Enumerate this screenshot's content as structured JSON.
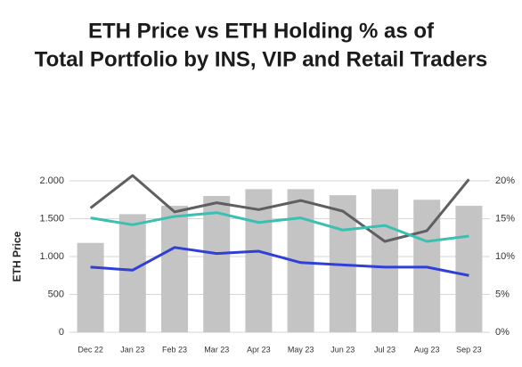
{
  "chart_data": {
    "type": "bar_line",
    "title": [
      "ETH Price vs ETH Holding % as of",
      "Total Portfolio by INS, VIP and Retail Traders"
    ],
    "ylabel": "ETH Price",
    "categories": [
      "Dec 22",
      "Jan 23",
      "Feb 23",
      "Mar 23",
      "Apr 23",
      "May 23",
      "Jun 23",
      "Jul 23",
      "Aug 23",
      "Sep 23"
    ],
    "ylim": [
      0,
      2000
    ],
    "yticks": [
      0,
      500,
      {
        "value": 1000,
        "label": "1.000"
      },
      {
        "value": 1500,
        "label": "1.500"
      },
      {
        "value": 2000,
        "label": "2.000"
      }
    ],
    "y2lim": [
      0,
      20
    ],
    "y2ticks": [
      {
        "value": 0,
        "label": "0%"
      },
      {
        "value": 5,
        "label": "5%"
      },
      {
        "value": 10,
        "label": "10%"
      },
      {
        "value": 15,
        "label": "15%"
      },
      {
        "value": 20,
        "label": "20%"
      }
    ],
    "grid": true,
    "series": [
      {
        "kind": "bar",
        "color": "#c4c4c4",
        "values": [
          1180,
          1560,
          1670,
          1800,
          1890,
          1890,
          1810,
          1890,
          1750,
          1670
        ]
      },
      {
        "kind": "line",
        "axis": "y2",
        "color": "#5f5f63",
        "values": [
          16.4,
          20.7,
          15.9,
          17.1,
          16.2,
          17.4,
          16.0,
          12.0,
          13.4,
          20.2
        ]
      },
      {
        "kind": "line",
        "axis": "y2",
        "color": "#3bbfb0",
        "values": [
          15.1,
          14.2,
          15.3,
          15.8,
          14.5,
          15.1,
          13.5,
          14.1,
          12.0,
          12.7
        ]
      },
      {
        "kind": "line",
        "axis": "y2",
        "color": "#2f3fd8",
        "values": [
          8.6,
          8.2,
          11.2,
          10.4,
          10.7,
          9.2,
          8.9,
          8.6,
          8.6,
          7.5
        ]
      }
    ]
  }
}
